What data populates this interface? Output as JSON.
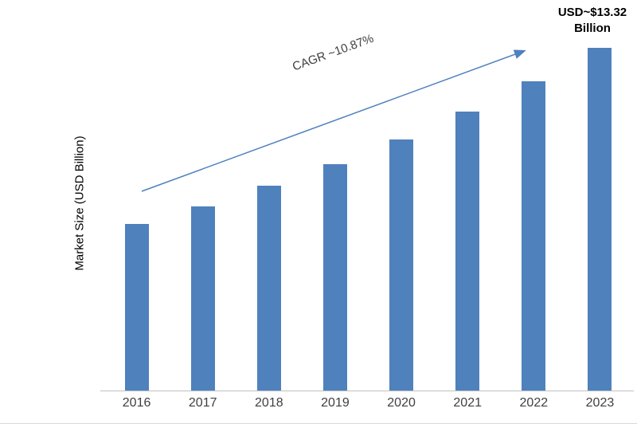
{
  "chart_data": {
    "type": "bar",
    "categories": [
      "2016",
      "2017",
      "2018",
      "2019",
      "2020",
      "2021",
      "2022",
      "2023"
    ],
    "values": [
      6.47,
      7.17,
      7.95,
      8.81,
      9.77,
      10.84,
      12.01,
      13.32
    ],
    "title": "",
    "xlabel": "",
    "ylabel": "Market Size (USD Billion)",
    "ylim": [
      0,
      13.95
    ],
    "grid": false,
    "legend": "none",
    "bar_color": "#4F81BD",
    "arrow_color": "#4F81BD",
    "annotations": {
      "cagr": "CAGR ~10.87%",
      "end_label_line1": "USD~$13.32",
      "end_label_line2": "Billion"
    }
  }
}
